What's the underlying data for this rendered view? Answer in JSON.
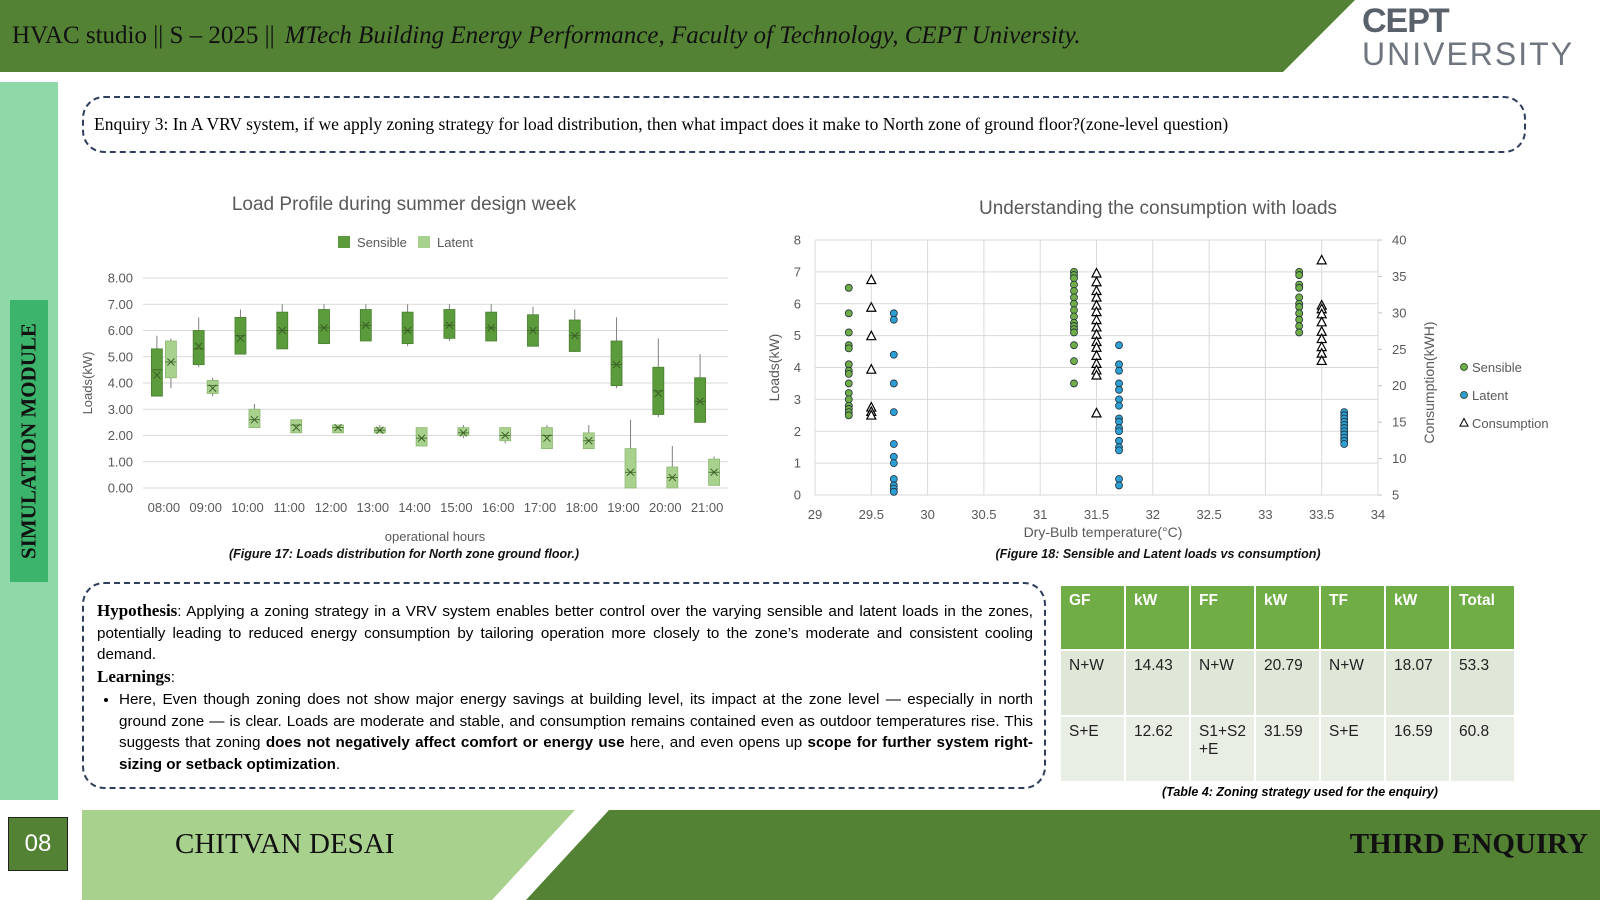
{
  "header": {
    "course": "HVAC studio || S – 2025 ||",
    "program": "MTech Building Energy Performance, Faculty of Technology, CEPT University.",
    "logo_top": "CEPT",
    "logo_bottom": "UNIVERSITY"
  },
  "sidebar": "SIMULATION MODULE",
  "enquiry": "Enquiry 3: In A VRV system, if we apply zoning strategy for load distribution, then what impact does it make to North zone of ground floor?(zone-level question)",
  "chart_data": [
    {
      "type": "box",
      "title": "Load Profile during summer design week",
      "x_label": "operational hours",
      "y_label": "Loads(kW)",
      "caption": "(Figure 17: Loads distribution for North zone ground floor.)",
      "categories": [
        "08:00",
        "09:00",
        "10:00",
        "11:00",
        "12:00",
        "13:00",
        "14:00",
        "15:00",
        "16:00",
        "17:00",
        "18:00",
        "19:00",
        "20:00",
        "21:00"
      ],
      "ylim": [
        0,
        8
      ],
      "yticks": [
        {
          "value": 0,
          "label": "0.00"
        },
        {
          "value": 1,
          "label": "1.00"
        },
        {
          "value": 2,
          "label": "2.00"
        },
        {
          "value": 3,
          "label": "3.00"
        },
        {
          "value": 4,
          "label": "4.00"
        },
        {
          "value": 5,
          "label": "5.00"
        },
        {
          "value": 6,
          "label": "6.00"
        },
        {
          "value": 7,
          "label": "7.00"
        },
        {
          "value": 8,
          "label": "8.00"
        }
      ],
      "series": [
        {
          "name": "Sensible",
          "color": "#5b9b3c",
          "min": [
            3.5,
            4.6,
            5.1,
            5.3,
            5.5,
            5.6,
            5.4,
            5.6,
            5.6,
            5.4,
            5.2,
            3.8,
            2.7,
            2.5
          ],
          "q1": [
            3.5,
            4.7,
            5.1,
            5.3,
            5.5,
            5.6,
            5.5,
            5.7,
            5.6,
            5.4,
            5.2,
            3.9,
            2.8,
            2.5
          ],
          "median": [
            4.5,
            5.3,
            5.8,
            6.0,
            6.1,
            6.2,
            6.0,
            6.2,
            6.1,
            6.0,
            5.8,
            4.7,
            3.7,
            3.3
          ],
          "q3": [
            5.3,
            6.0,
            6.5,
            6.7,
            6.8,
            6.8,
            6.7,
            6.8,
            6.7,
            6.6,
            6.4,
            5.6,
            4.6,
            4.2
          ],
          "max": [
            5.8,
            6.5,
            6.8,
            7.0,
            7.0,
            7.0,
            7.0,
            7.0,
            7.0,
            6.9,
            6.8,
            6.5,
            5.7,
            5.1
          ],
          "mean": [
            4.3,
            5.4,
            5.7,
            6.0,
            6.1,
            6.2,
            6.0,
            6.2,
            6.1,
            6.0,
            5.8,
            4.7,
            3.6,
            3.3
          ]
        },
        {
          "name": "Latent",
          "color": "#a9d18e",
          "min": [
            3.8,
            3.5,
            2.3,
            2.1,
            2.1,
            2.1,
            1.6,
            1.9,
            1.7,
            1.5,
            1.5,
            0.0,
            0.0,
            0.1
          ],
          "q1": [
            4.2,
            3.6,
            2.3,
            2.1,
            2.1,
            2.1,
            1.6,
            2.0,
            1.8,
            1.5,
            1.5,
            0.0,
            0.0,
            0.1
          ],
          "median": [
            4.8,
            3.9,
            2.6,
            2.4,
            2.3,
            2.2,
            1.9,
            2.1,
            2.0,
            2.0,
            1.8,
            0.6,
            0.4,
            0.6
          ],
          "q3": [
            5.6,
            4.1,
            3.0,
            2.6,
            2.4,
            2.3,
            2.3,
            2.3,
            2.3,
            2.3,
            2.1,
            1.5,
            0.8,
            1.1
          ],
          "max": [
            5.7,
            4.2,
            3.2,
            2.6,
            2.4,
            2.4,
            2.3,
            2.4,
            2.3,
            2.4,
            2.4,
            2.6,
            1.6,
            1.2
          ],
          "mean": [
            4.8,
            3.8,
            2.6,
            2.3,
            2.3,
            2.2,
            1.9,
            2.1,
            2.0,
            1.9,
            1.8,
            0.6,
            0.4,
            0.6
          ]
        }
      ]
    },
    {
      "type": "scatter",
      "title": "Understanding the consumption with loads",
      "x_label": "Dry-Bulb temperature(°C)",
      "y_label": "Loads(kW)",
      "y2_label": "Consumption(kWH)",
      "caption": "(Figure 18: Sensible and Latent loads vs consumption)",
      "xlim": [
        29,
        34
      ],
      "xticks": [
        29,
        29.5,
        30,
        30.5,
        31,
        31.5,
        32,
        32.5,
        33,
        33.5,
        34
      ],
      "ylim": [
        0,
        8
      ],
      "yticks": [
        0,
        1,
        2,
        3,
        4,
        5,
        6,
        7,
        8
      ],
      "y2lim": [
        5,
        40
      ],
      "y2ticks": [
        5,
        10,
        15,
        20,
        25,
        30,
        35,
        40
      ],
      "grid": true,
      "series": [
        {
          "name": "Sensible",
          "color": "#70ad47",
          "marker": "circle",
          "x": [
            29.3,
            29.3,
            29.3,
            29.3,
            29.3,
            29.3,
            29.3,
            29.3,
            29.3,
            29.3,
            29.3,
            29.3,
            29.3,
            29.3,
            29.3,
            31.3,
            31.3,
            31.3,
            31.3,
            31.3,
            31.3,
            31.3,
            31.3,
            31.3,
            31.3,
            31.3,
            31.3,
            31.3,
            31.3,
            31.3,
            31.3,
            33.3,
            33.3,
            33.3,
            33.3,
            33.3,
            33.3,
            33.3,
            33.3,
            33.3,
            33.3,
            33.3
          ],
          "values": [
            6.5,
            5.7,
            5.1,
            4.7,
            4.6,
            4.1,
            3.9,
            3.8,
            3.5,
            3.2,
            3.0,
            2.8,
            2.7,
            2.6,
            2.5,
            7.0,
            6.9,
            6.8,
            6.6,
            6.4,
            6.2,
            6.0,
            5.8,
            5.6,
            5.4,
            5.3,
            5.2,
            5.1,
            4.7,
            4.2,
            3.5,
            7.0,
            6.9,
            6.6,
            6.5,
            6.2,
            6.0,
            5.9,
            5.7,
            5.5,
            5.3,
            5.1
          ]
        },
        {
          "name": "Latent",
          "color": "#2e9fd3",
          "marker": "circle",
          "x": [
            29.7,
            29.7,
            29.7,
            29.7,
            29.7,
            29.7,
            29.7,
            29.7,
            29.7,
            29.7,
            29.7,
            29.7,
            31.7,
            31.7,
            31.7,
            31.7,
            31.7,
            31.7,
            31.7,
            31.7,
            31.7,
            31.7,
            31.7,
            31.7,
            31.7,
            31.7,
            31.7,
            31.7,
            33.7,
            33.7,
            33.7,
            33.7,
            33.7,
            33.7,
            33.7,
            33.7,
            33.7,
            33.7,
            33.7
          ],
          "values": [
            5.7,
            5.5,
            4.4,
            3.5,
            2.6,
            1.6,
            1.2,
            1.0,
            0.5,
            0.3,
            0.2,
            0.1,
            4.7,
            4.1,
            3.9,
            3.5,
            3.3,
            3.0,
            2.8,
            2.4,
            2.3,
            2.1,
            2.0,
            1.7,
            1.5,
            1.4,
            0.5,
            0.3,
            2.6,
            2.5,
            2.4,
            2.3,
            2.2,
            2.1,
            2.0,
            1.9,
            1.8,
            1.7,
            1.6
          ]
        },
        {
          "name": "Consumption",
          "color": "#ffffff",
          "marker": "triangle",
          "axis": "y2",
          "x": [
            29.5,
            29.5,
            29.5,
            29.5,
            29.5,
            29.5,
            29.5,
            31.5,
            31.5,
            31.5,
            31.5,
            31.5,
            31.5,
            31.5,
            31.5,
            31.5,
            31.5,
            31.5,
            31.5,
            31.5,
            31.5,
            31.5,
            31.5,
            33.5,
            33.5,
            33.5,
            33.5,
            33.5,
            33.5,
            33.5,
            33.5,
            33.5,
            33.5
          ],
          "values": [
            34.5,
            30.7,
            26.8,
            22.2,
            17.0,
            16.4,
            15.9,
            35.4,
            34.2,
            33.0,
            32.1,
            31.0,
            30.1,
            29.0,
            28.0,
            27.0,
            26.0,
            25.2,
            24.1,
            23.0,
            22.1,
            21.4,
            16.2,
            37.2,
            31.0,
            30.5,
            29.8,
            28.7,
            27.4,
            26.4,
            25.3,
            24.4,
            23.4
          ]
        }
      ]
    }
  ],
  "hypothesis": {
    "label": "Hypothesis",
    "text": ": Applying a zoning strategy in a VRV system enables better control over the varying sensible and latent loads in the zones, potentially leading to reduced energy consumption by tailoring operation more closely to the zone’s moderate and consistent cooling demand."
  },
  "learnings": {
    "label": "Learnings",
    "colon": ":",
    "bullet": [
      {
        "text": "Here, Even though zoning does not show major energy savings at building level, its impact at the zone level — especially in north ground zone — is clear. Loads are moderate and stable, and consumption remains contained even as outdoor temperatures rise. This suggests that zoning ",
        "bold": false
      },
      {
        "text": "does not negatively affect comfort or energy use",
        "bold": true
      },
      {
        "text": " here, and even opens up ",
        "bold": false
      },
      {
        "text": "scope for further system right-sizing or setback optimization",
        "bold": true
      },
      {
        "text": ".",
        "bold": false
      }
    ]
  },
  "table": {
    "header": [
      "GF",
      "kW",
      "FF",
      "kW",
      "TF",
      "kW",
      "Total"
    ],
    "rows": [
      [
        "N+W",
        "14.43",
        "N+W",
        "20.79",
        "N+W",
        "18.07",
        "53.3"
      ],
      [
        "S+E",
        "12.62",
        "S1+S2 +E",
        "31.59",
        "S+E",
        "16.59",
        "60.8"
      ]
    ],
    "caption": "(Table 4: Zoning strategy used for the enquiry)"
  },
  "footer": {
    "page": "08",
    "author": "CHITVAN DESAI",
    "section": "THIRD ENQUIRY"
  }
}
